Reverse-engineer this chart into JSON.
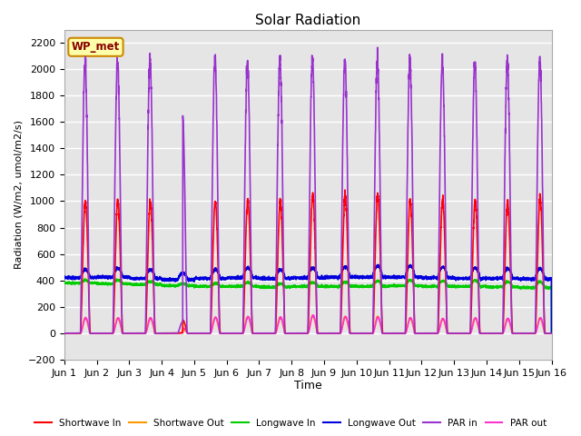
{
  "title": "Solar Radiation",
  "xlabel": "Time",
  "ylabel": "Radiation (W/m2, umol/m2/s)",
  "ylim": [
    -200,
    2300
  ],
  "xlim": [
    0,
    15
  ],
  "yticks": [
    -200,
    0,
    200,
    400,
    600,
    800,
    1000,
    1200,
    1400,
    1600,
    1800,
    2000,
    2200
  ],
  "xtick_labels": [
    "Jun 1",
    "Jun 2",
    "Jun 3",
    "Jun 4",
    "Jun 5",
    "Jun 6",
    "Jun 7",
    "Jun 8",
    "Jun 9",
    "Jun 10",
    "Jun 11",
    "Jun 12",
    "Jun 13",
    "Jun 14",
    "Jun 15",
    "Jun 16"
  ],
  "legend_label": "WP_met",
  "legend_box_color": "#ffffaa",
  "legend_box_edge": "#cc8800",
  "background_color": "#e5e5e5",
  "series": {
    "shortwave_in": {
      "color": "#ff0000",
      "label": "Shortwave In"
    },
    "shortwave_out": {
      "color": "#ff9900",
      "label": "Shortwave Out"
    },
    "longwave_in": {
      "color": "#00cc00",
      "label": "Longwave In"
    },
    "longwave_out": {
      "color": "#0000dd",
      "label": "Longwave Out"
    },
    "par_in": {
      "color": "#9933cc",
      "label": "PAR in"
    },
    "par_out": {
      "color": "#ff33cc",
      "label": "PAR out"
    }
  },
  "n_days": 15,
  "points_per_day": 288,
  "day_peak_sw_in": [
    1000,
    1000,
    1000,
    100,
    1000,
    1010,
    1000,
    1050,
    1050,
    1040,
    1010,
    1010,
    1000,
    1000,
    1030
  ],
  "day_peak_sw_out": [
    115,
    115,
    115,
    30,
    120,
    125,
    120,
    135,
    125,
    125,
    115,
    110,
    115,
    110,
    115
  ],
  "day_peak_par_in": [
    2050,
    2060,
    2065,
    1660,
    2080,
    2060,
    2070,
    2080,
    2070,
    2060,
    2060,
    2065,
    2060,
    2060,
    2080
  ],
  "day_peak_par_out": [
    115,
    115,
    115,
    40,
    120,
    125,
    120,
    135,
    125,
    120,
    115,
    110,
    115,
    110,
    115
  ],
  "lw_in_base": [
    380,
    375,
    370,
    360,
    355,
    355,
    350,
    355,
    355,
    355,
    360,
    355,
    355,
    350,
    345
  ],
  "lw_out_base": [
    420,
    425,
    415,
    405,
    415,
    420,
    415,
    420,
    425,
    425,
    425,
    420,
    415,
    415,
    410
  ],
  "lw_in_day_bump": [
    20,
    25,
    20,
    15,
    25,
    30,
    25,
    30,
    35,
    40,
    40,
    40,
    45,
    40,
    45
  ],
  "lw_out_day_bump": [
    60,
    65,
    65,
    50,
    70,
    75,
    65,
    75,
    80,
    85,
    85,
    80,
    80,
    75,
    80
  ],
  "day4_partial_start": 0.3,
  "day4_partial_end": 0.65
}
